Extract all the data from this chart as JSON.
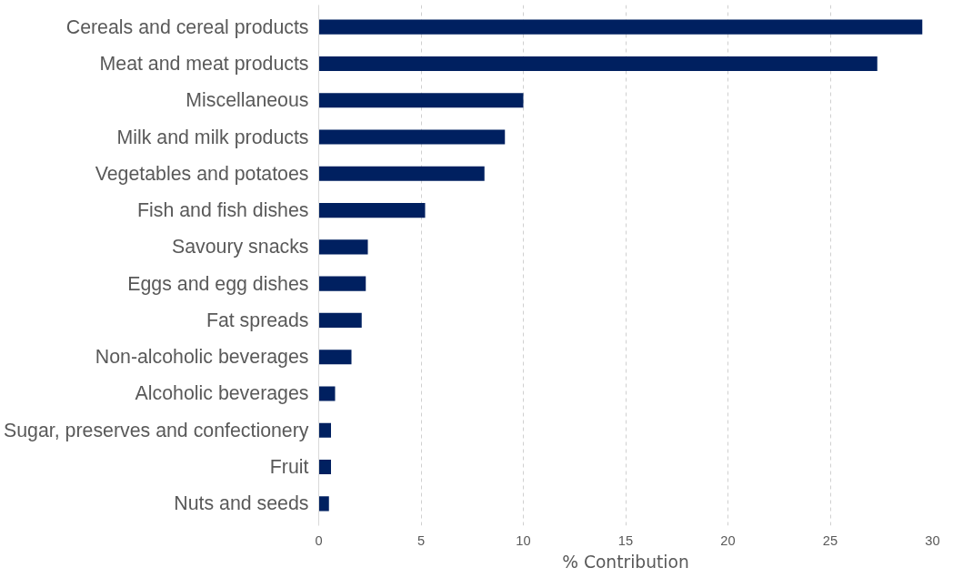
{
  "chart_data": {
    "type": "bar",
    "orientation": "horizontal",
    "xlabel": "% Contribution",
    "categories": [
      "Cereals and cereal products",
      "Meat and meat products",
      "Miscellaneous",
      "Milk and milk products",
      "Vegetables and potatoes",
      "Fish and fish dishes",
      "Savoury snacks",
      "Eggs and egg dishes",
      "Fat spreads",
      "Non-alcoholic beverages",
      "Alcoholic beverages",
      "Sugar, preserves and confectionery",
      "Fruit",
      "Nuts and seeds"
    ],
    "values": [
      29.5,
      27.3,
      10.0,
      9.1,
      8.1,
      5.2,
      2.4,
      2.3,
      2.1,
      1.6,
      0.8,
      0.6,
      0.6,
      0.5
    ],
    "color": "#002060",
    "xlim": [
      0,
      30
    ],
    "xticks": [
      0,
      5,
      10,
      15,
      20,
      25,
      30
    ],
    "grid": "x"
  }
}
